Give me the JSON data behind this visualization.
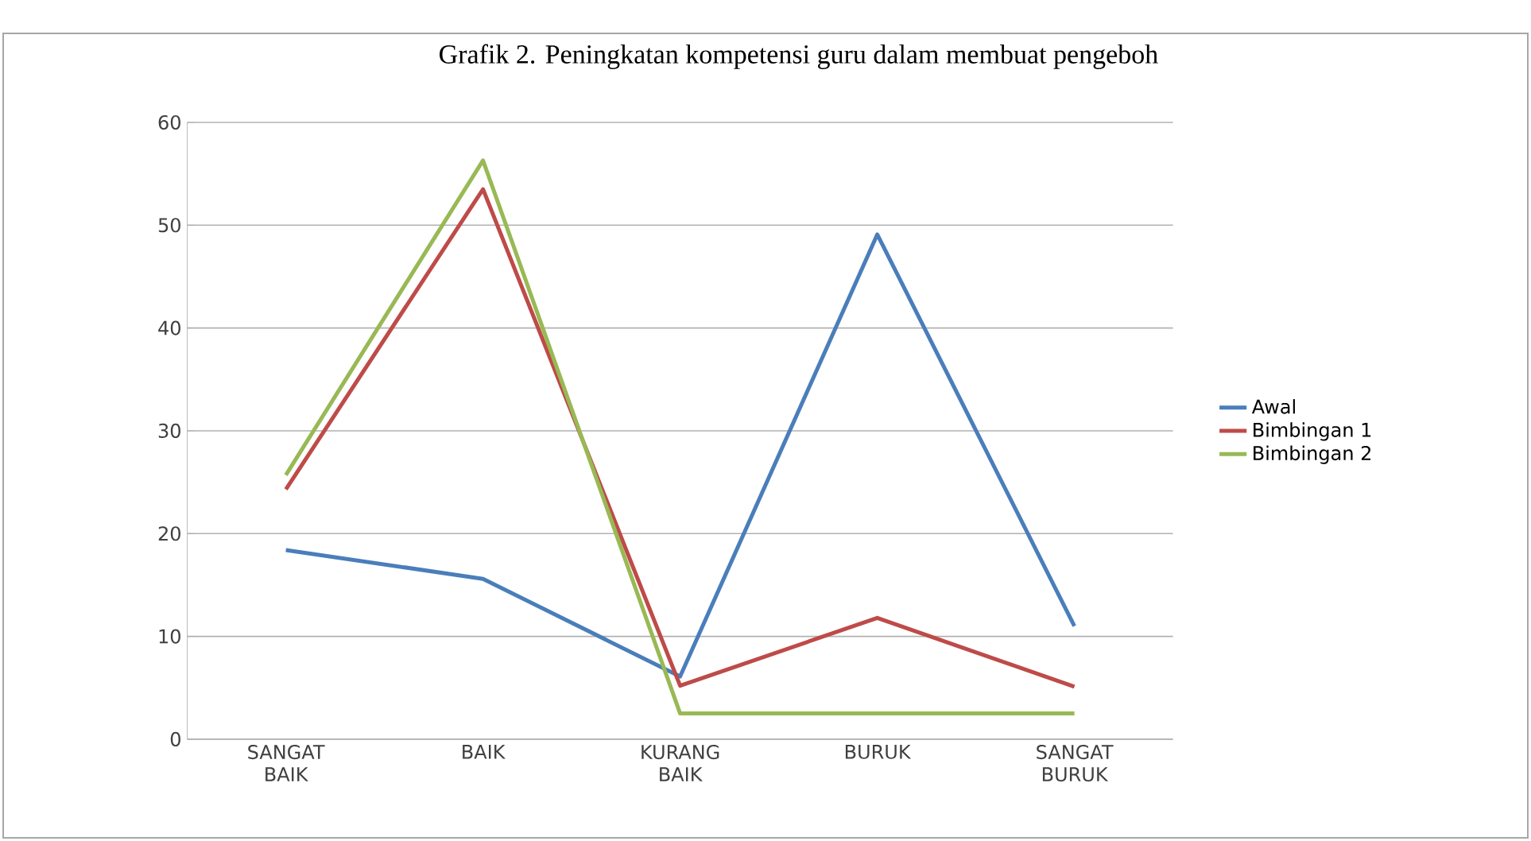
{
  "chart_data": {
    "type": "line",
    "title": "Grafik 2. Peningkatan kompetensi guru dalam membuat pengeboh",
    "categories": [
      "SANGAT BAIK",
      "BAIK",
      "KURANG BAIK",
      "BURUK",
      "SANGAT BURUK"
    ],
    "series": [
      {
        "name": "Awal",
        "color": "#4a7ebb",
        "values": [
          18.4,
          15.6,
          6.1,
          49.1,
          11.0
        ]
      },
      {
        "name": "Bimbingan 1",
        "color": "#be4b48",
        "values": [
          24.3,
          53.5,
          5.2,
          11.8,
          5.1
        ]
      },
      {
        "name": "Bimbingan 2",
        "color": "#98b954",
        "values": [
          25.7,
          56.3,
          2.5,
          2.5,
          2.5
        ]
      }
    ],
    "ylim": [
      0,
      60
    ],
    "yticks": [
      0,
      10,
      20,
      30,
      40,
      50,
      60
    ],
    "grid": "y",
    "legend": "right",
    "marker": "none",
    "line_style": "solid"
  }
}
